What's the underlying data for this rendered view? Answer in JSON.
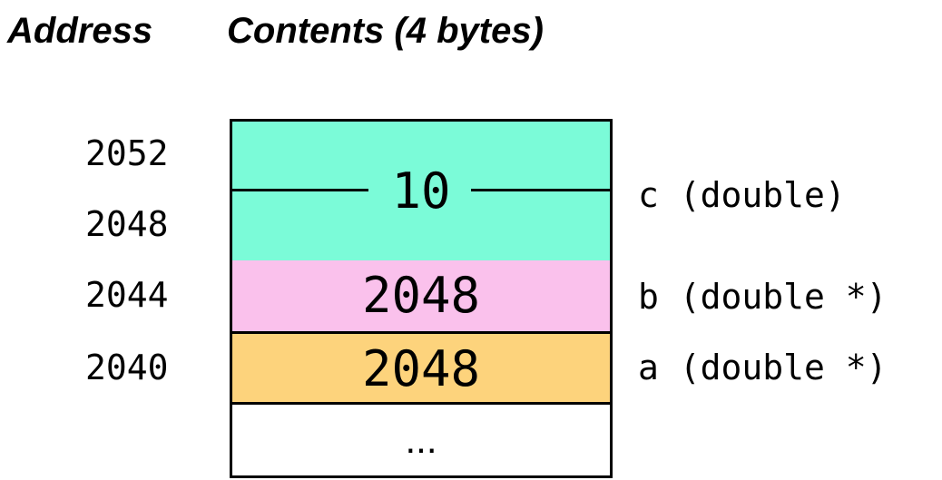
{
  "headers": {
    "address": "Address",
    "contents": "Contents (4 bytes)"
  },
  "addresses": [
    "2052",
    "2048",
    "2044",
    "2040"
  ],
  "cells": {
    "c": {
      "value": "10",
      "color": "#7bfbd8"
    },
    "b": {
      "value": "2048",
      "color": "#fac1ec"
    },
    "a": {
      "value": "2048",
      "color": "#fdd37c"
    },
    "empty": {
      "value": "...",
      "color": "#ffffff"
    }
  },
  "labels": {
    "c": "c (double)",
    "b": "b (double *)",
    "a": "a (double *)"
  }
}
